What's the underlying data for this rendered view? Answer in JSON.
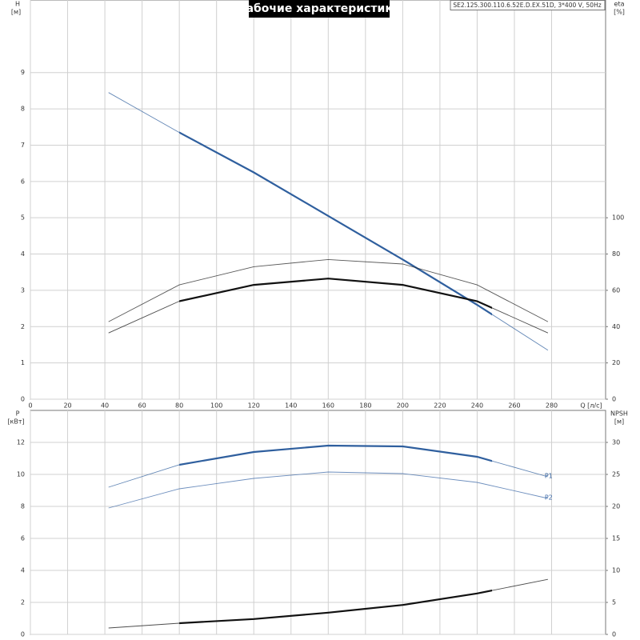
{
  "chart_data": [
    {
      "type": "line",
      "title": "Рабочие характеристики",
      "subtitle": "SE2.125.300.110.6.52E.D.EX.51D, 3*400 V, 50Hz",
      "ylabel": "H",
      "yunit": "[м]",
      "y2label": "eta",
      "y2unit": "[%]",
      "xlabel": "Q [л/с]",
      "xlim": [
        0,
        309
      ],
      "xticks": [
        0,
        20,
        40,
        60,
        80,
        100,
        120,
        140,
        160,
        180,
        200,
        220,
        240,
        260,
        280
      ],
      "ylim": [
        0,
        11
      ],
      "yticks": [
        0,
        1,
        2,
        3,
        4,
        5,
        6,
        7,
        8,
        9
      ],
      "y2lim": [
        0,
        220
      ],
      "y2ticks": [
        0,
        20,
        40,
        60,
        80,
        100
      ],
      "grid": true,
      "xtick_labels": true,
      "duty_range": [
        80,
        248
      ],
      "x": [
        42,
        80,
        120,
        160,
        200,
        240,
        278
      ],
      "series": [
        {
          "color": "#2f5f9e",
          "highlight": true,
          "values": [
            8.45,
            7.35,
            6.25,
            5.05,
            3.85,
            2.6,
            1.35
          ]
        },
        {
          "color": "#222222",
          "highlight": false,
          "axis": "y2",
          "values": [
            42.7,
            63,
            73,
            77,
            74.5,
            63,
            42.7
          ]
        },
        {
          "color": "#111111",
          "highlight": true,
          "axis": "y2",
          "values": [
            36.5,
            54,
            63,
            66.5,
            63,
            54,
            36.5
          ]
        }
      ]
    },
    {
      "type": "line",
      "ylabel": "P",
      "yunit": "[кВт]",
      "y2label": "NPSH",
      "y2unit": "[м]",
      "xlim": [
        0,
        309
      ],
      "xticks": [
        0,
        20,
        40,
        60,
        80,
        100,
        120,
        140,
        160,
        180,
        200,
        220,
        240,
        260,
        280
      ],
      "ylim": [
        0,
        14
      ],
      "yticks": [
        0,
        2,
        4,
        6,
        8,
        10,
        12
      ],
      "y2lim": [
        0,
        35
      ],
      "y2ticks": [
        0,
        5,
        10,
        15,
        20,
        25,
        30
      ],
      "grid": true,
      "xtick_labels": false,
      "duty_range": [
        80,
        248
      ],
      "x": [
        42,
        80,
        120,
        160,
        200,
        240,
        278
      ],
      "series": [
        {
          "name": "P1",
          "color": "#2f5f9e",
          "highlight": true,
          "values": [
            9.2,
            10.6,
            11.4,
            11.8,
            11.75,
            11.1,
            9.85
          ]
        },
        {
          "name": "P2",
          "color": "#3d6aa8",
          "highlight": false,
          "values": [
            7.9,
            9.1,
            9.75,
            10.15,
            10.05,
            9.5,
            8.5
          ]
        },
        {
          "color": "#111111",
          "highlight": true,
          "axis": "y2",
          "values": [
            1.0,
            1.75,
            2.4,
            3.4,
            4.6,
            6.4,
            8.6
          ]
        }
      ]
    }
  ]
}
